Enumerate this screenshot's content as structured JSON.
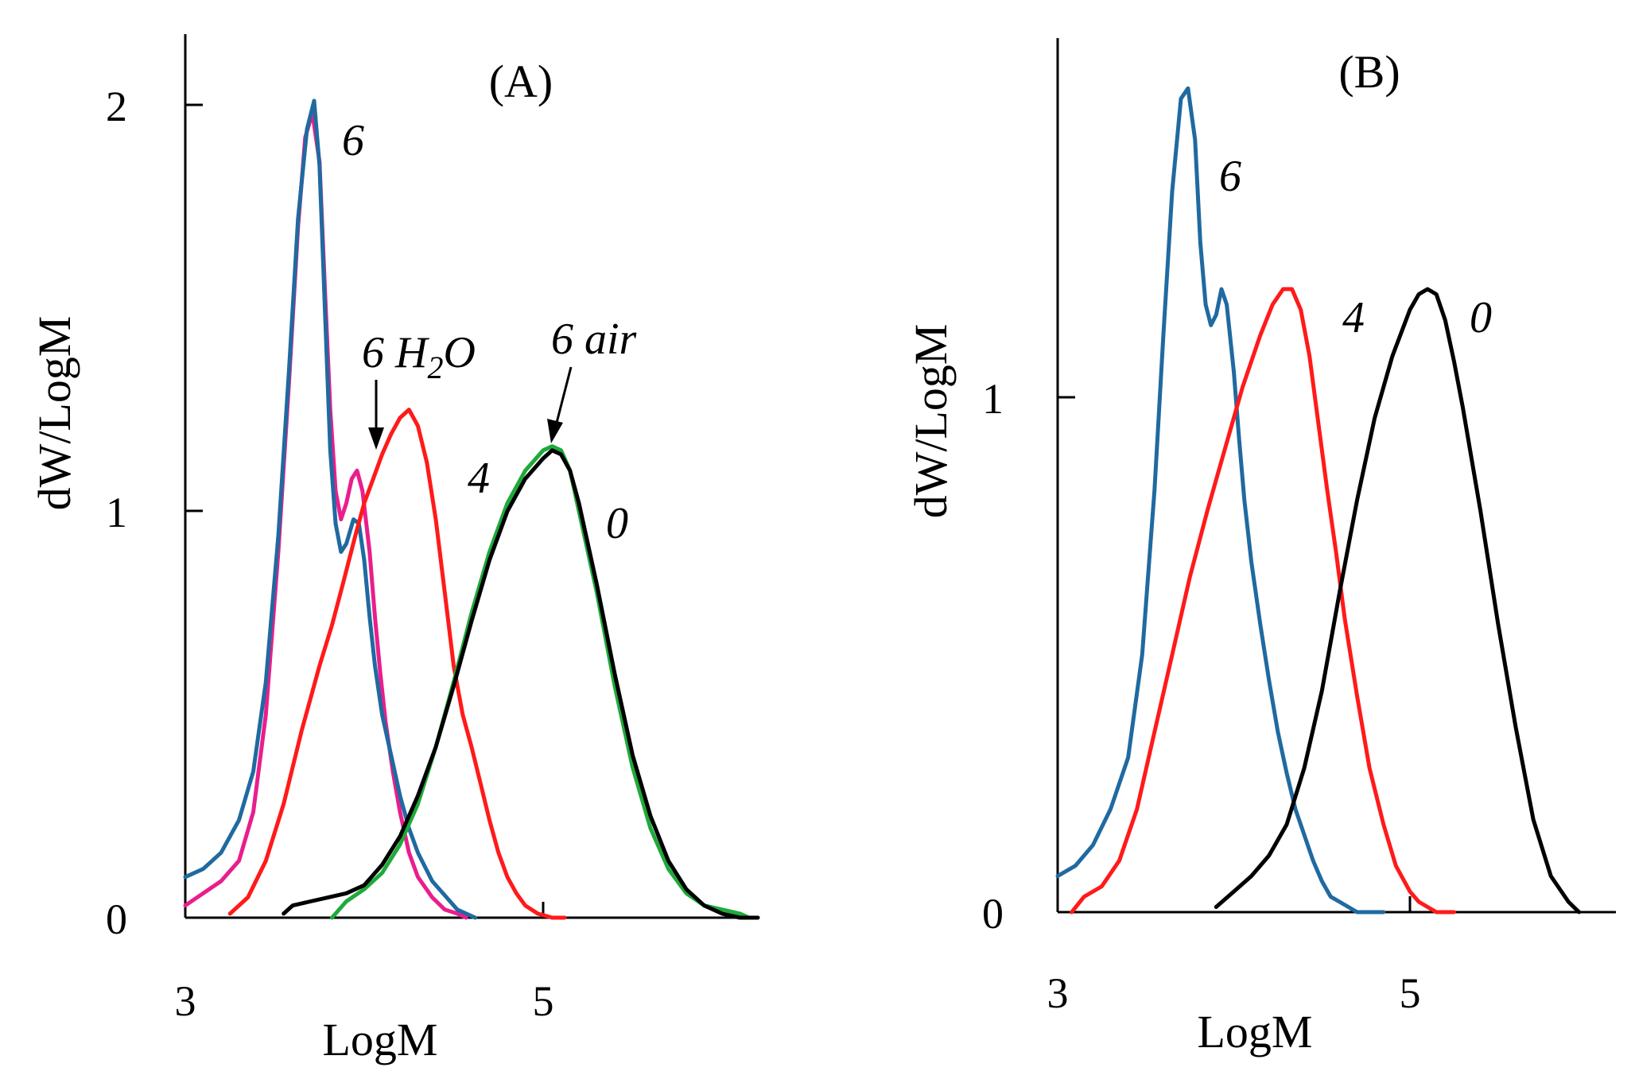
{
  "chart_data": [
    {
      "type": "line",
      "title": "(A)",
      "xlabel": "LogM",
      "ylabel": "dW/LogM",
      "xlim": [
        3,
        6.2
      ],
      "ylim": [
        0,
        2.18
      ],
      "xticks": [
        3,
        5
      ],
      "xtick_labels": [
        "3",
        "5"
      ],
      "yticks": [
        0,
        1,
        2
      ],
      "ytick_labels": [
        "0",
        "1",
        "2"
      ],
      "series": [
        {
          "name": "6 H2O",
          "color": "#e91e8c",
          "x": [
            3.0,
            3.1,
            3.2,
            3.3,
            3.38,
            3.45,
            3.52,
            3.58,
            3.63,
            3.67,
            3.71,
            3.75,
            3.78,
            3.81,
            3.84,
            3.87,
            3.9,
            3.93,
            3.96,
            3.99,
            4.03,
            4.06,
            4.09,
            4.12,
            4.16,
            4.2,
            4.25,
            4.3,
            4.38,
            4.45,
            4.52,
            4.57
          ],
          "values": [
            0.03,
            0.06,
            0.09,
            0.14,
            0.26,
            0.5,
            0.9,
            1.32,
            1.7,
            1.92,
            1.98,
            1.86,
            1.55,
            1.25,
            1.05,
            0.98,
            1.02,
            1.08,
            1.1,
            1.05,
            0.9,
            0.74,
            0.6,
            0.48,
            0.36,
            0.26,
            0.16,
            0.1,
            0.05,
            0.02,
            0.01,
            0.0
          ]
        },
        {
          "name": "6",
          "color": "#1f6aa0",
          "x": [
            3.0,
            3.1,
            3.2,
            3.3,
            3.38,
            3.45,
            3.52,
            3.58,
            3.63,
            3.68,
            3.72,
            3.75,
            3.78,
            3.81,
            3.84,
            3.87,
            3.9,
            3.94,
            3.97,
            4.0,
            4.03,
            4.06,
            4.1,
            4.15,
            4.2,
            4.25,
            4.3,
            4.38,
            4.46,
            4.52,
            4.57,
            4.62
          ],
          "values": [
            0.1,
            0.12,
            0.16,
            0.24,
            0.36,
            0.58,
            0.94,
            1.35,
            1.72,
            1.94,
            2.01,
            1.85,
            1.5,
            1.15,
            0.97,
            0.9,
            0.92,
            0.98,
            0.97,
            0.88,
            0.74,
            0.62,
            0.5,
            0.4,
            0.3,
            0.22,
            0.16,
            0.09,
            0.05,
            0.02,
            0.01,
            0.0
          ]
        },
        {
          "name": "4",
          "color": "#ff1a1a",
          "x": [
            3.25,
            3.35,
            3.45,
            3.55,
            3.65,
            3.75,
            3.82,
            3.88,
            3.95,
            4.0,
            4.05,
            4.1,
            4.15,
            4.2,
            4.25,
            4.3,
            4.35,
            4.4,
            4.45,
            4.5,
            4.55,
            4.6,
            4.65,
            4.7,
            4.75,
            4.8,
            4.85,
            4.9,
            4.97,
            5.05,
            5.12
          ],
          "values": [
            0.01,
            0.05,
            0.14,
            0.28,
            0.46,
            0.62,
            0.72,
            0.82,
            0.94,
            1.02,
            1.08,
            1.14,
            1.19,
            1.23,
            1.25,
            1.21,
            1.12,
            0.98,
            0.8,
            0.62,
            0.5,
            0.42,
            0.33,
            0.24,
            0.16,
            0.1,
            0.06,
            0.03,
            0.01,
            0.0,
            0.0
          ]
        },
        {
          "name": "6 air",
          "color": "#1faa3a",
          "x": [
            3.82,
            3.9,
            4.0,
            4.1,
            4.2,
            4.3,
            4.4,
            4.5,
            4.6,
            4.7,
            4.8,
            4.9,
            5.0,
            5.05,
            5.1,
            5.15,
            5.2,
            5.3,
            5.4,
            5.5,
            5.6,
            5.7,
            5.8,
            5.9,
            6.0,
            6.1,
            6.15
          ],
          "values": [
            0.0,
            0.04,
            0.07,
            0.11,
            0.18,
            0.28,
            0.42,
            0.58,
            0.75,
            0.9,
            1.02,
            1.1,
            1.15,
            1.16,
            1.15,
            1.1,
            1.0,
            0.8,
            0.57,
            0.37,
            0.22,
            0.12,
            0.06,
            0.03,
            0.02,
            0.01,
            0.0
          ]
        },
        {
          "name": "0",
          "color": "#000000",
          "x": [
            3.55,
            3.6,
            3.7,
            3.8,
            3.9,
            4.0,
            4.1,
            4.2,
            4.3,
            4.4,
            4.5,
            4.6,
            4.7,
            4.8,
            4.9,
            5.0,
            5.05,
            5.1,
            5.15,
            5.2,
            5.3,
            5.4,
            5.5,
            5.6,
            5.7,
            5.8,
            5.9,
            6.0,
            6.1,
            6.2
          ],
          "values": [
            0.01,
            0.03,
            0.04,
            0.05,
            0.06,
            0.08,
            0.13,
            0.2,
            0.3,
            0.42,
            0.57,
            0.73,
            0.88,
            1.0,
            1.08,
            1.13,
            1.15,
            1.14,
            1.1,
            1.02,
            0.82,
            0.6,
            0.4,
            0.25,
            0.14,
            0.07,
            0.03,
            0.01,
            0.0,
            0.0
          ]
        }
      ],
      "annotations": [
        {
          "text": "6",
          "series": "6"
        },
        {
          "text": "6 H",
          "sub": "2",
          "tail": "O",
          "series": "6 H2O"
        },
        {
          "text": "6 air",
          "series": "6 air"
        },
        {
          "text": "4",
          "series": "4"
        },
        {
          "text": "0",
          "series": "0"
        }
      ]
    },
    {
      "type": "line",
      "title": "(B)",
      "xlabel": "LogM",
      "ylabel": "dW/LogM",
      "xlim": [
        3,
        6.2
      ],
      "ylim": [
        0,
        1.72
      ],
      "xticks": [
        3,
        5
      ],
      "xtick_labels": [
        "3",
        "5"
      ],
      "yticks": [
        0,
        1
      ],
      "ytick_labels": [
        "0",
        "1"
      ],
      "series": [
        {
          "name": "6",
          "color": "#1f6aa0",
          "x": [
            3.0,
            3.1,
            3.2,
            3.3,
            3.4,
            3.48,
            3.55,
            3.6,
            3.65,
            3.7,
            3.74,
            3.78,
            3.81,
            3.84,
            3.87,
            3.9,
            3.93,
            3.96,
            4.0,
            4.03,
            4.06,
            4.1,
            4.15,
            4.2,
            4.25,
            4.3,
            4.35,
            4.4,
            4.45,
            4.5,
            4.55,
            4.6,
            4.65,
            4.7,
            4.75,
            4.8,
            4.85
          ],
          "values": [
            0.07,
            0.09,
            0.13,
            0.2,
            0.3,
            0.5,
            0.82,
            1.12,
            1.4,
            1.58,
            1.6,
            1.5,
            1.3,
            1.18,
            1.14,
            1.16,
            1.21,
            1.18,
            1.05,
            0.92,
            0.8,
            0.68,
            0.56,
            0.45,
            0.35,
            0.27,
            0.2,
            0.15,
            0.1,
            0.06,
            0.03,
            0.02,
            0.01,
            0.0,
            0.0,
            0.0,
            0.0
          ]
        },
        {
          "name": "4",
          "color": "#ff1a1a",
          "x": [
            3.08,
            3.15,
            3.25,
            3.35,
            3.45,
            3.55,
            3.65,
            3.75,
            3.85,
            3.95,
            4.05,
            4.15,
            4.22,
            4.28,
            4.33,
            4.38,
            4.43,
            4.48,
            4.53,
            4.58,
            4.63,
            4.7,
            4.77,
            4.85,
            4.92,
            5.0,
            5.05,
            5.1,
            5.15,
            5.2,
            5.25
          ],
          "values": [
            0.0,
            0.03,
            0.05,
            0.1,
            0.2,
            0.35,
            0.5,
            0.65,
            0.78,
            0.9,
            1.02,
            1.12,
            1.18,
            1.21,
            1.21,
            1.17,
            1.08,
            0.95,
            0.82,
            0.7,
            0.57,
            0.42,
            0.28,
            0.17,
            0.09,
            0.04,
            0.02,
            0.01,
            0.0,
            0.0,
            0.0
          ]
        },
        {
          "name": "0",
          "color": "#000000",
          "x": [
            3.9,
            4.0,
            4.1,
            4.2,
            4.3,
            4.4,
            4.5,
            4.6,
            4.7,
            4.8,
            4.9,
            5.0,
            5.05,
            5.1,
            5.15,
            5.2,
            5.25,
            5.3,
            5.4,
            5.5,
            5.6,
            5.7,
            5.8,
            5.9,
            5.96
          ],
          "values": [
            0.01,
            0.04,
            0.07,
            0.11,
            0.17,
            0.28,
            0.43,
            0.62,
            0.8,
            0.96,
            1.08,
            1.17,
            1.2,
            1.21,
            1.2,
            1.15,
            1.07,
            0.98,
            0.78,
            0.56,
            0.36,
            0.18,
            0.07,
            0.02,
            0.0
          ]
        }
      ],
      "annotations": [
        {
          "text": "6",
          "series": "6"
        },
        {
          "text": "4",
          "series": "4"
        },
        {
          "text": "0",
          "series": "0"
        }
      ]
    }
  ]
}
